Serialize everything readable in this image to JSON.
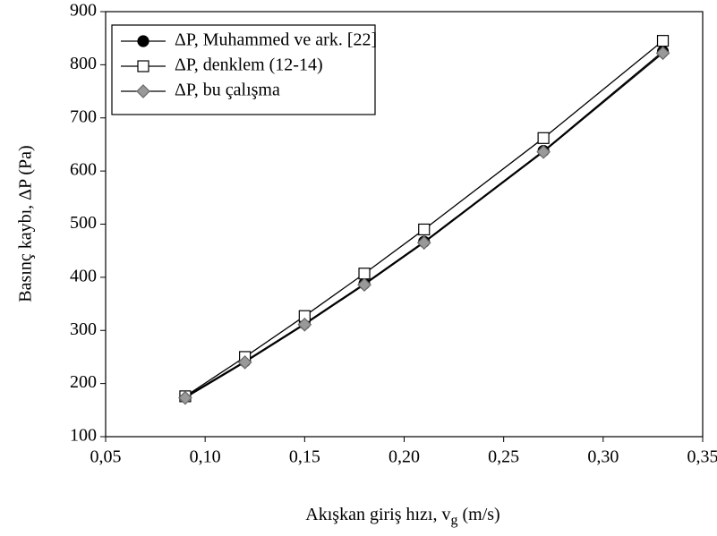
{
  "chart_data": {
    "type": "line",
    "xlabel": [
      "Akışkan giriş hızı, v",
      "g",
      " (m/s)"
    ],
    "ylabel": "Basınç kaybı, ΔP (Pa)",
    "x": [
      0.09,
      0.12,
      0.15,
      0.18,
      0.21,
      0.27,
      0.33
    ],
    "series": [
      {
        "name": "ΔP, Muhammed ve ark. [22]",
        "color": "#000000",
        "marker": "circle",
        "marker_fill": "#000000",
        "values": [
          175,
          242,
          313,
          388,
          467,
          638,
          825
        ]
      },
      {
        "name": "ΔP, denklem (12-14)",
        "color": "#000000",
        "marker": "square",
        "marker_fill": "#ffffff",
        "values": [
          176,
          250,
          327,
          407,
          490,
          662,
          845
        ]
      },
      {
        "name": "ΔP, bu çalışma",
        "color": "#000000",
        "marker": "diamond",
        "marker_fill": "#999999",
        "values": [
          173,
          240,
          311,
          386,
          465,
          636,
          822
        ]
      }
    ],
    "xlim": [
      0.05,
      0.35
    ],
    "xticks": [
      {
        "value": 0.05,
        "label": "0,05"
      },
      {
        "value": 0.1,
        "label": "0,10"
      },
      {
        "value": 0.15,
        "label": "0,15"
      },
      {
        "value": 0.2,
        "label": "0,20"
      },
      {
        "value": 0.25,
        "label": "0,25"
      },
      {
        "value": 0.3,
        "label": "0,30"
      },
      {
        "value": 0.35,
        "label": "0,35"
      }
    ],
    "ylim": [
      100,
      900
    ],
    "yticks": [
      100,
      200,
      300,
      400,
      500,
      600,
      700,
      800,
      900
    ],
    "grid": false,
    "legend": "upper-left"
  }
}
